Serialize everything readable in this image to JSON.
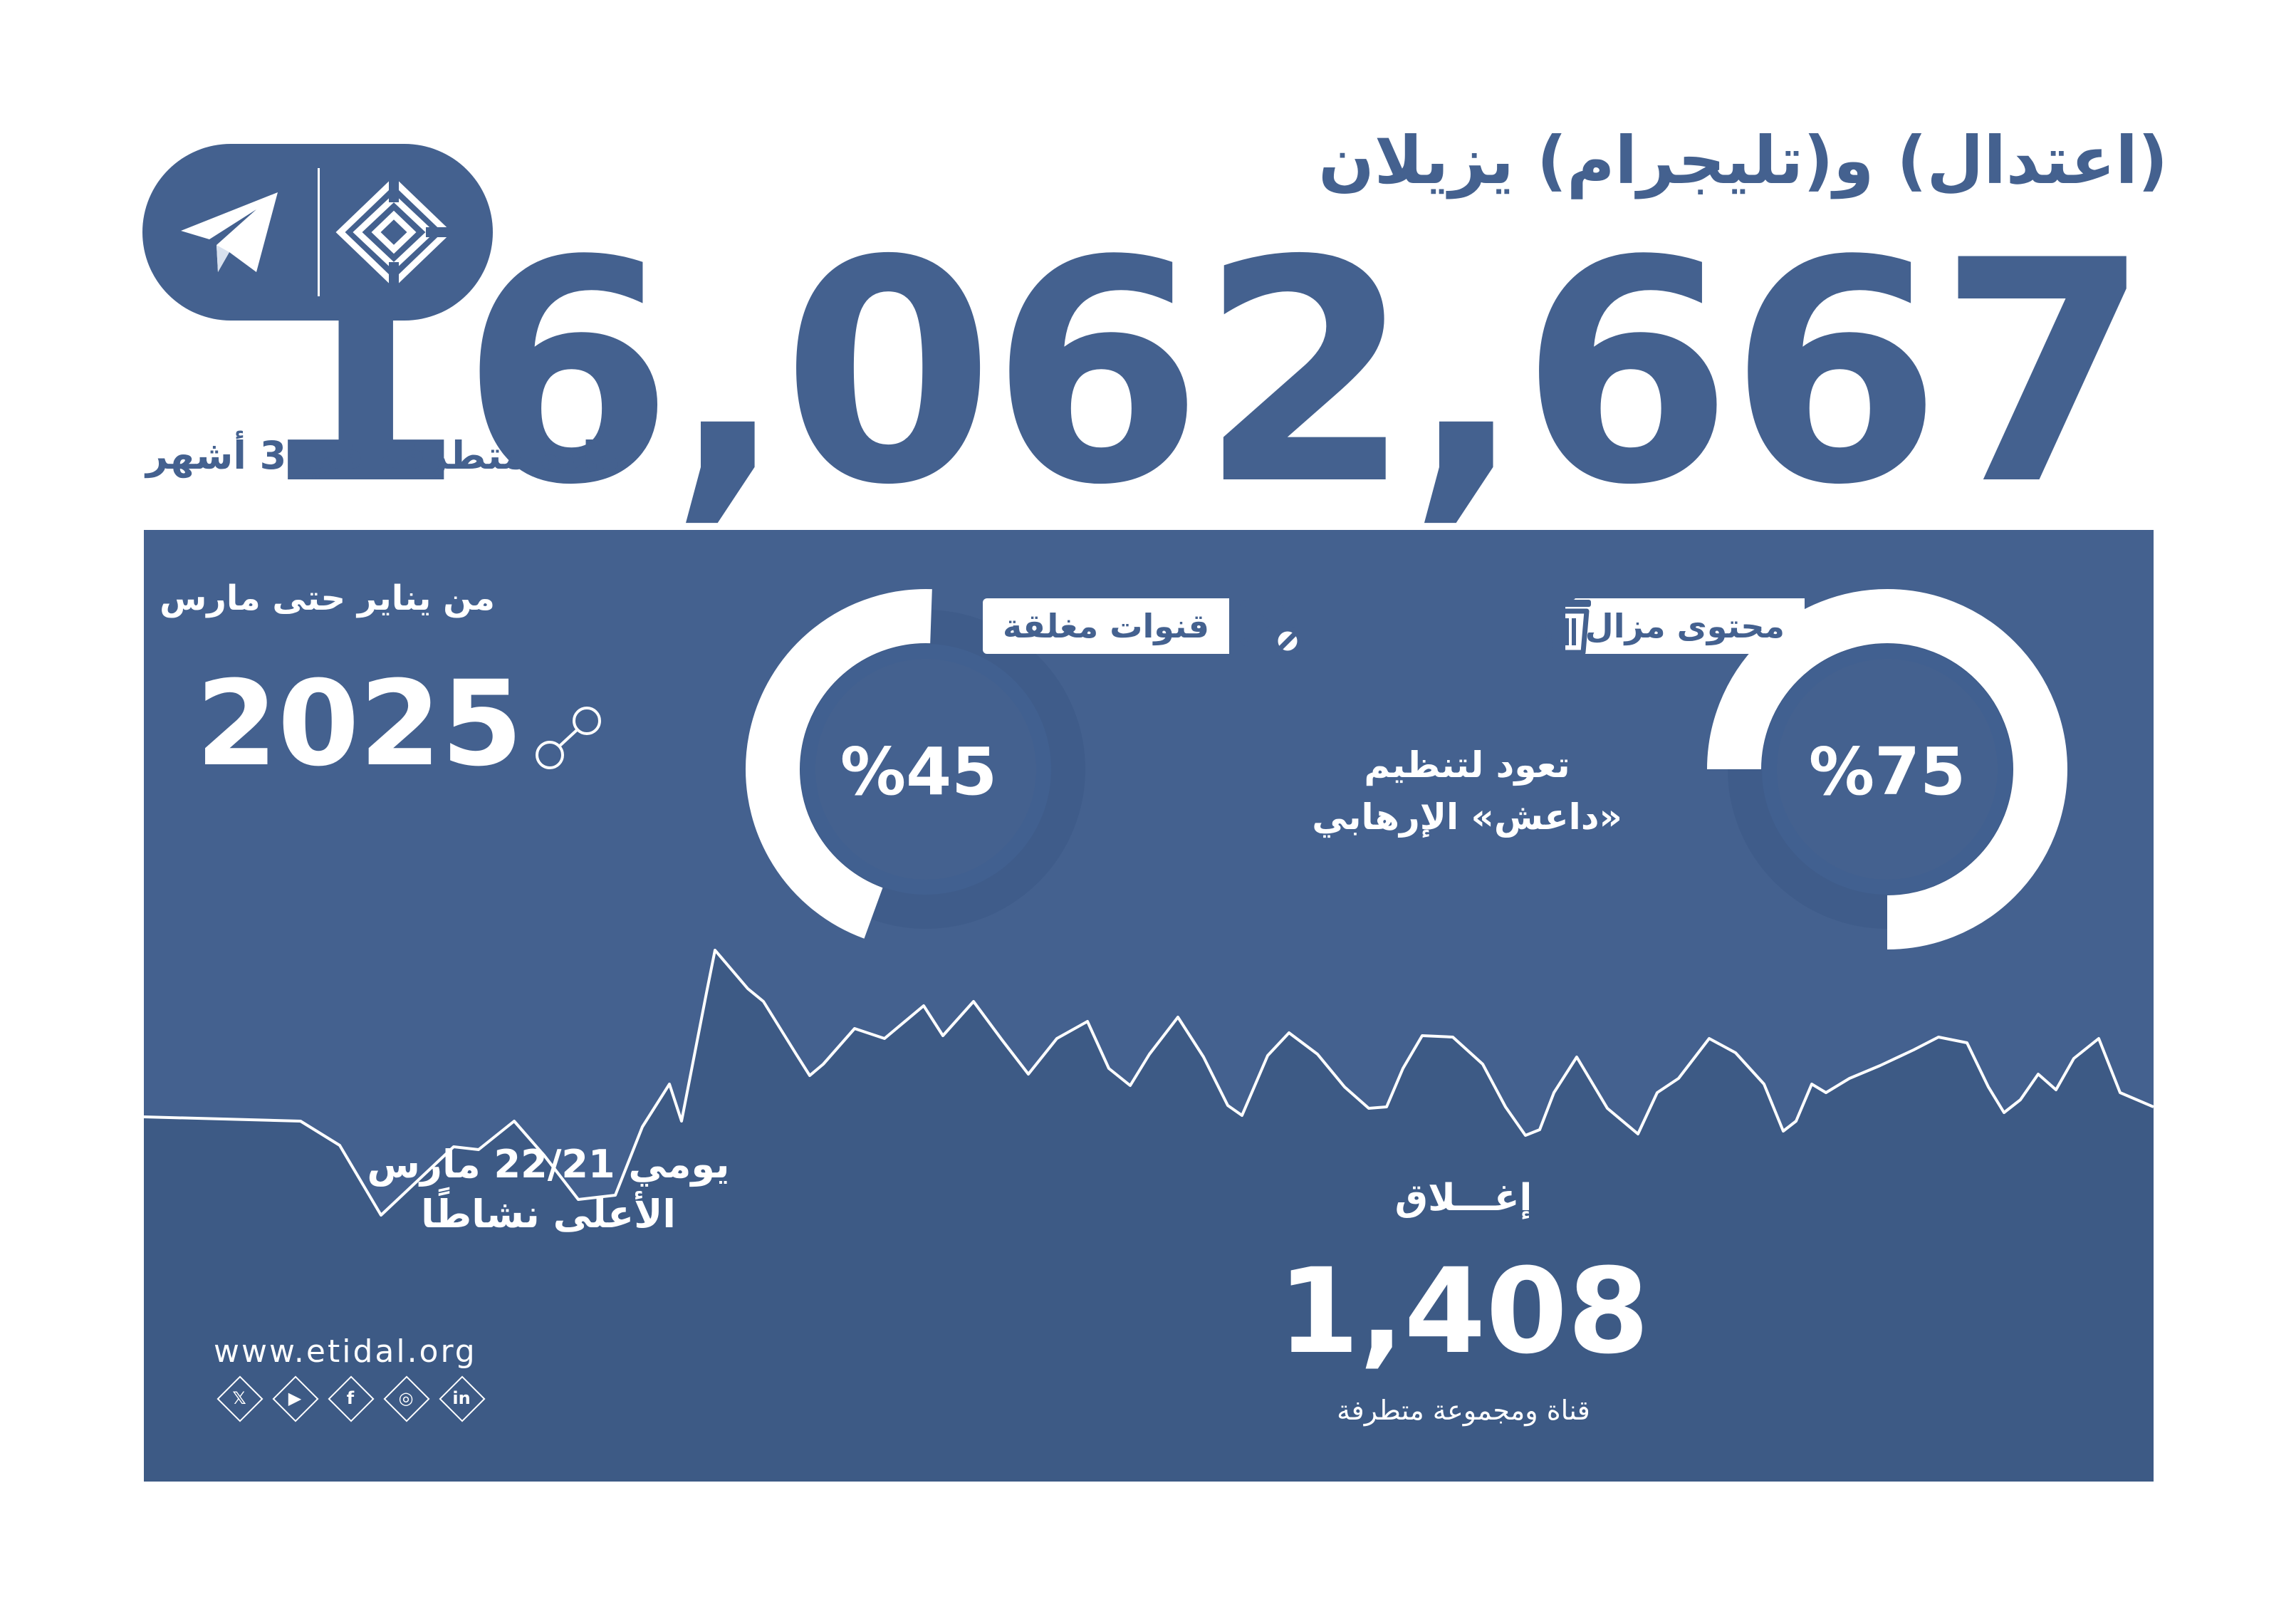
{
  "header": {
    "title": "(اعتدال) و(تليجرام) يزيلان",
    "main_number": "16,062,667",
    "subtitle": "مادة متطرفة في 3 أشهر"
  },
  "logo": {
    "left_icon": "telegram-paper-plane-icon",
    "right_icon": "etidal-kufic-logo"
  },
  "period": {
    "label": "من يناير حتى مارس",
    "year": "2025"
  },
  "stats": {
    "removed_content": {
      "label": "محتوى مزال",
      "icon": "trash-icon",
      "percent_text": "%75",
      "percent": 75
    },
    "closed_channels": {
      "label": "قنوات مغلقة",
      "icon": "video-blocked-icon",
      "percent_text": "%45",
      "percent": 45
    },
    "note": "تعود لتنظيم «داعش» الإرهابي"
  },
  "peak": {
    "line1": "يومي 22/21 مارس",
    "line2": "الأعلى نشاطًا"
  },
  "closure": {
    "label": "إغـــلاق",
    "number": "1,408",
    "description": "قناة ومجموعة متطرفة"
  },
  "footer": {
    "website": "www.etidal.org",
    "socials": [
      {
        "name": "x-icon",
        "glyph": "𝕏"
      },
      {
        "name": "youtube-icon",
        "glyph": "▶"
      },
      {
        "name": "facebook-icon",
        "glyph": "f"
      },
      {
        "name": "instagram-icon",
        "glyph": "◎"
      },
      {
        "name": "linkedin-icon",
        "glyph": "in"
      }
    ]
  },
  "colors": {
    "brand_blue": "#44618f",
    "dark_blue": "#3d5a85",
    "ring_track": "#3d5a86",
    "white": "#ffffff"
  }
}
